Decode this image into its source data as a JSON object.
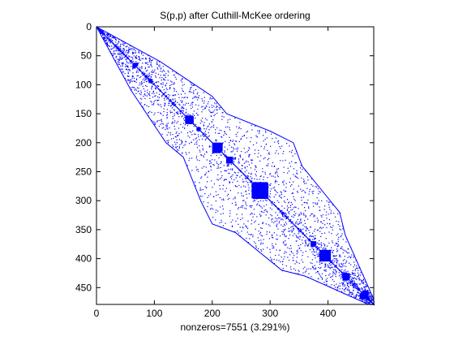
{
  "chart_data": {
    "type": "spy",
    "title": "S(p,p) after Cuthill-McKee ordering",
    "xlabel": "nonzeros=7551 (3.291%)",
    "ylabel": "",
    "n": 479,
    "nonzeros": 7551,
    "density_percent": 3.291,
    "xlim": [
      0,
      479
    ],
    "ylim": [
      479,
      0
    ],
    "xticks": [
      0,
      100,
      200,
      300,
      400
    ],
    "yticks": [
      0,
      50,
      100,
      150,
      200,
      250,
      300,
      350,
      400,
      450
    ],
    "marker_color": "#0000ff",
    "structure": {
      "diagonal": true,
      "symmetric": true,
      "approx_lower_band_edge": [
        [
          0,
          0
        ],
        [
          60,
          110
        ],
        [
          120,
          200
        ],
        [
          150,
          225
        ],
        [
          180,
          300
        ],
        [
          200,
          340
        ],
        [
          240,
          355
        ],
        [
          320,
          420
        ],
        [
          360,
          430
        ],
        [
          470,
          479
        ]
      ],
      "dense_blocks": [
        [
          62,
          68,
          66,
          72
        ],
        [
          90,
          97,
          90,
          97
        ],
        [
          130,
          135,
          130,
          135
        ],
        [
          153,
          168,
          155,
          166
        ],
        [
          173,
          180,
          175,
          180
        ],
        [
          200,
          218,
          200,
          215
        ],
        [
          224,
          236,
          225,
          236
        ],
        [
          268,
          297,
          270,
          296
        ],
        [
          370,
          380,
          370,
          377
        ],
        [
          385,
          405,
          385,
          405
        ],
        [
          425,
          438,
          425,
          435
        ],
        [
          455,
          468,
          460,
          470
        ]
      ]
    }
  }
}
